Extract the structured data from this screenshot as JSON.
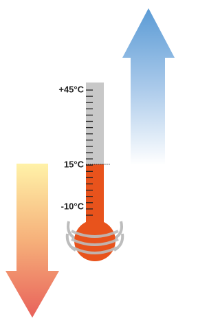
{
  "thermometer": {
    "labels": [
      "+45°C",
      "15°C",
      "-10°C"
    ]
  }
}
